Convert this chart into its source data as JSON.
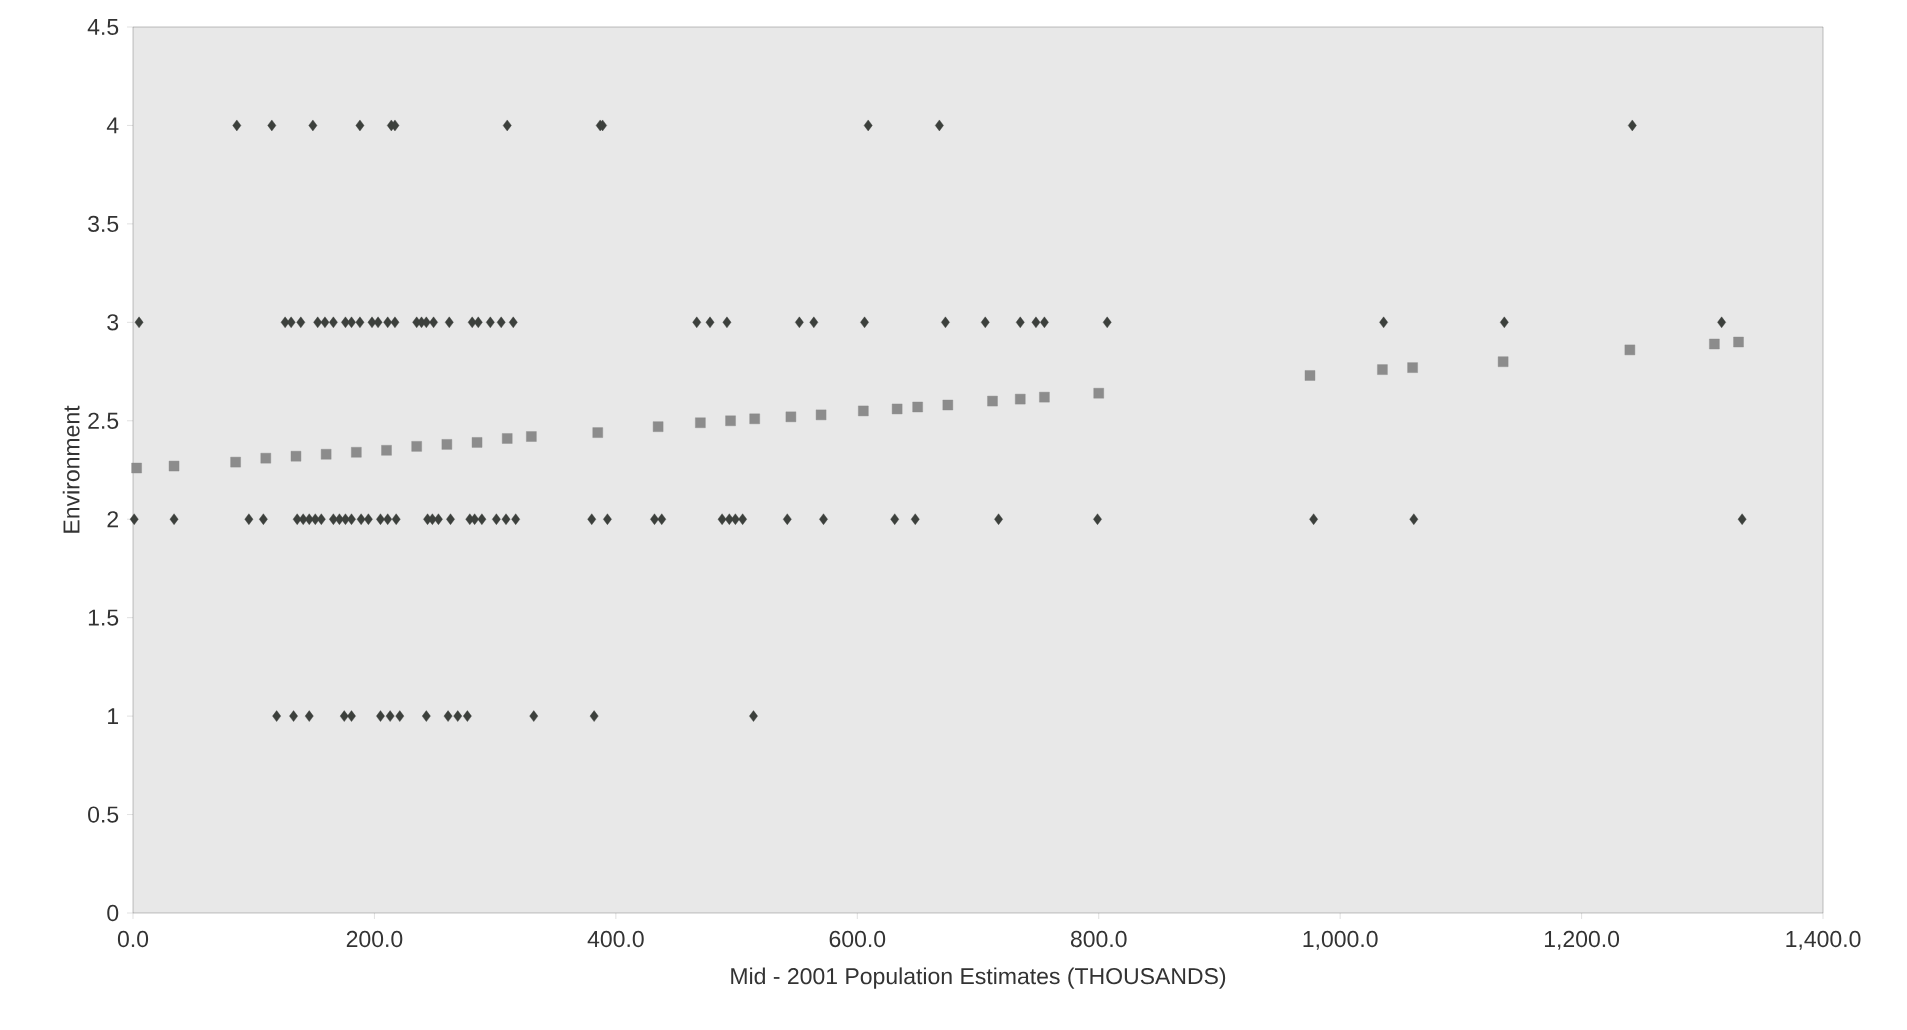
{
  "chart_data": {
    "type": "scatter",
    "xlabel": "Mid - 2001 Population Estimates (THOUSANDS)",
    "ylabel": "Environment",
    "xlim": [
      0,
      1400
    ],
    "ylim": [
      0,
      4.5
    ],
    "xticks": [
      {
        "value": 0,
        "label": "0.0"
      },
      {
        "value": 200,
        "label": "200.0"
      },
      {
        "value": 400,
        "label": "400.0"
      },
      {
        "value": 600,
        "label": "600.0"
      },
      {
        "value": 800,
        "label": "800.0"
      },
      {
        "value": 1000,
        "label": "1,000.0"
      },
      {
        "value": 1200,
        "label": "1,200.0"
      },
      {
        "value": 1400,
        "label": "1,400.0"
      }
    ],
    "yticks": [
      0,
      0.5,
      1,
      1.5,
      2,
      2.5,
      3,
      3.5,
      4,
      4.5
    ],
    "grid": false,
    "series": [
      {
        "color": "#3c403c",
        "marker": "diamond",
        "x": [
          86,
          115,
          149,
          188,
          214,
          217,
          310,
          387,
          389,
          609,
          668,
          1242,
          5,
          126,
          131,
          139,
          153,
          159,
          166,
          176,
          181,
          188,
          198,
          203,
          211,
          217,
          235,
          239,
          243,
          249,
          262,
          281,
          286,
          296,
          305,
          315,
          467,
          478,
          492,
          552,
          564,
          606,
          673,
          706,
          735,
          748,
          755,
          807,
          1036,
          1136,
          1316,
          1,
          34,
          96,
          108,
          136,
          141,
          146,
          151,
          156,
          166,
          171,
          176,
          181,
          189,
          195,
          205,
          211,
          218,
          244,
          248,
          253,
          263,
          279,
          283,
          289,
          301,
          309,
          317,
          380,
          393,
          432,
          438,
          488,
          494,
          499,
          505,
          542,
          572,
          631,
          648,
          717,
          799,
          978,
          1061,
          1333,
          119,
          133,
          146,
          175,
          181,
          205,
          213,
          221,
          243,
          261,
          269,
          277,
          332,
          382,
          514
        ],
        "values": [
          4,
          4,
          4,
          4,
          4,
          4,
          4,
          4,
          4,
          4,
          4,
          4,
          3,
          3,
          3,
          3,
          3,
          3,
          3,
          3,
          3,
          3,
          3,
          3,
          3,
          3,
          3,
          3,
          3,
          3,
          3,
          3,
          3,
          3,
          3,
          3,
          3,
          3,
          3,
          3,
          3,
          3,
          3,
          3,
          3,
          3,
          3,
          3,
          3,
          3,
          3,
          2,
          2,
          2,
          2,
          2,
          2,
          2,
          2,
          2,
          2,
          2,
          2,
          2,
          2,
          2,
          2,
          2,
          2,
          2,
          2,
          2,
          2,
          2,
          2,
          2,
          2,
          2,
          2,
          2,
          2,
          2,
          2,
          2,
          2,
          2,
          2,
          2,
          2,
          2,
          2,
          2,
          2,
          2,
          2,
          2,
          1,
          1,
          1,
          1,
          1,
          1,
          1,
          1,
          1,
          1,
          1,
          1,
          1,
          1,
          1
        ]
      },
      {
        "color": "#8c8c8c",
        "marker": "square",
        "x": [
          3,
          34,
          85,
          110,
          135,
          160,
          185,
          210,
          235,
          260,
          285,
          310,
          330,
          385,
          435,
          470,
          495,
          515,
          545,
          570,
          605,
          633,
          650,
          675,
          712,
          735,
          755,
          800,
          975,
          1035,
          1060,
          1135,
          1240,
          1310,
          1330
        ],
        "values": [
          2.26,
          2.27,
          2.29,
          2.31,
          2.32,
          2.33,
          2.34,
          2.35,
          2.37,
          2.38,
          2.39,
          2.41,
          2.42,
          2.44,
          2.47,
          2.49,
          2.5,
          2.51,
          2.52,
          2.53,
          2.55,
          2.56,
          2.57,
          2.58,
          2.6,
          2.61,
          2.62,
          2.64,
          2.73,
          2.76,
          2.77,
          2.8,
          2.86,
          2.89,
          2.9
        ]
      }
    ]
  }
}
